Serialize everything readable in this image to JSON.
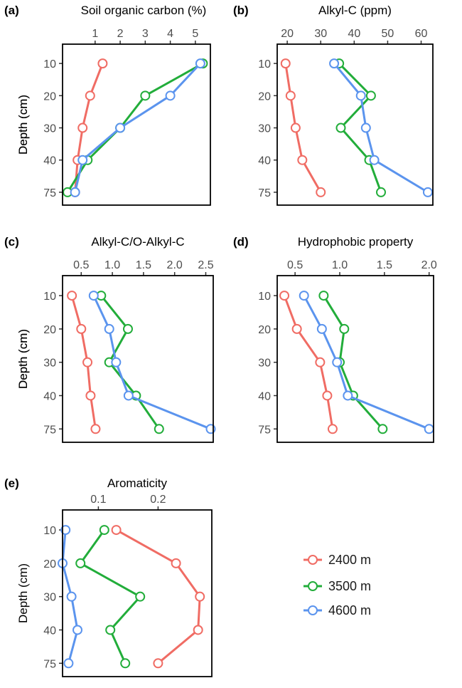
{
  "chart_data": {
    "type": "line",
    "depths": [
      "10",
      "20",
      "30",
      "40",
      "75"
    ],
    "ylabel": "Depth (cm)",
    "legend": {
      "position": "bottom-right",
      "entries": [
        {
          "name": "2400 m",
          "color": "#F06C64"
        },
        {
          "name": "3500 m",
          "color": "#22AD3A"
        },
        {
          "name": "4600 m",
          "color": "#5B94EE"
        }
      ]
    },
    "panels": [
      {
        "label": "(a)",
        "title": "Soil organic carbon (%)",
        "xlim": [
          -0.3,
          5.6
        ],
        "xticks": [
          "1",
          "2",
          "3",
          "4",
          "5"
        ],
        "series": [
          {
            "name": "2400 m",
            "values": [
              1.3,
              0.8,
              0.5,
              0.3,
              0.2
            ]
          },
          {
            "name": "3500 m",
            "values": [
              5.3,
              3.0,
              2.0,
              0.7,
              -0.1
            ]
          },
          {
            "name": "4600 m",
            "values": [
              5.2,
              4.0,
              2.0,
              0.5,
              0.2
            ]
          }
        ]
      },
      {
        "label": "(b)",
        "title": "Alkyl-C (ppm)",
        "xlim": [
          17,
          63.5
        ],
        "xticks": [
          "20",
          "30",
          "40",
          "50",
          "60"
        ],
        "series": [
          {
            "name": "2400 m",
            "values": [
              19.5,
              21,
              22.5,
              24.5,
              30
            ]
          },
          {
            "name": "3500 m",
            "values": [
              35.5,
              45,
              36,
              44.5,
              48
            ]
          },
          {
            "name": "4600 m",
            "values": [
              34,
              42,
              43.5,
              46,
              62
            ]
          }
        ]
      },
      {
        "label": "(c)",
        "title": "Alkyl-C/O-Alkyl-C",
        "xlim": [
          0.2,
          2.62
        ],
        "xticks": [
          "0.5",
          "1.0",
          "1.5",
          "2.0",
          "2.5"
        ],
        "series": [
          {
            "name": "2400 m",
            "values": [
              0.35,
              0.5,
              0.6,
              0.65,
              0.73
            ]
          },
          {
            "name": "3500 m",
            "values": [
              0.82,
              1.25,
              0.95,
              1.38,
              1.75
            ]
          },
          {
            "name": "4600 m",
            "values": [
              0.7,
              0.95,
              1.06,
              1.26,
              2.58
            ]
          }
        ]
      },
      {
        "label": "(d)",
        "title": "Hydrophobic property",
        "xlim": [
          0.3,
          2.05
        ],
        "xticks": [
          "0.5",
          "1.0",
          "1.5",
          "2.0"
        ],
        "series": [
          {
            "name": "2400 m",
            "values": [
              0.38,
              0.52,
              0.78,
              0.86,
              0.92
            ]
          },
          {
            "name": "3500 m",
            "values": [
              0.82,
              1.05,
              1.0,
              1.15,
              1.48
            ]
          },
          {
            "name": "4600 m",
            "values": [
              0.6,
              0.8,
              0.97,
              1.09,
              2.0
            ]
          }
        ]
      },
      {
        "label": "(e)",
        "title": "Aromaticity",
        "xlim": [
          0.04,
          0.29
        ],
        "xticks": [
          "0.1",
          "0.2"
        ],
        "series": [
          {
            "name": "2400 m",
            "values": [
              0.13,
              0.23,
              0.27,
              0.267,
              0.2
            ]
          },
          {
            "name": "3500 m",
            "values": [
              0.11,
              0.07,
              0.17,
              0.12,
              0.145
            ]
          },
          {
            "name": "4600 m",
            "values": [
              0.045,
              0.04,
              0.055,
              0.065,
              0.05
            ]
          }
        ]
      }
    ]
  }
}
